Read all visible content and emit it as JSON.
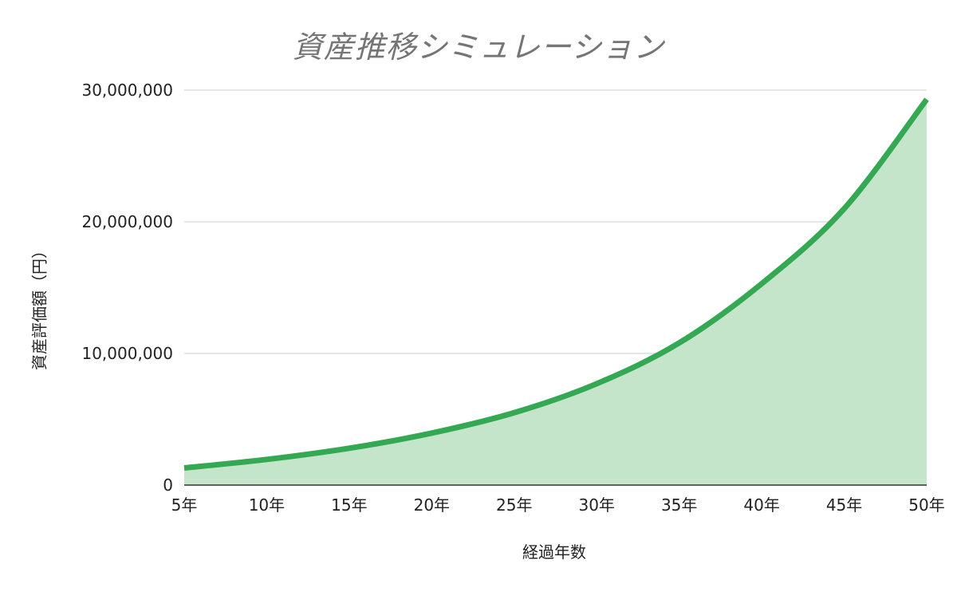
{
  "chart_data": {
    "type": "area",
    "title": "資産推移シミュレーション",
    "xlabel": "経過年数",
    "ylabel": "資産評価額（円）",
    "categories": [
      "5年",
      "10年",
      "15年",
      "20年",
      "25年",
      "30年",
      "35年",
      "40年",
      "45年",
      "50年"
    ],
    "x": [
      5,
      10,
      15,
      20,
      25,
      30,
      35,
      40,
      45,
      50
    ],
    "ylim": [
      0,
      30000000
    ],
    "y_ticks": [
      {
        "value": 0,
        "label": "0"
      },
      {
        "value": 10000000,
        "label": "10,000,000"
      },
      {
        "value": 20000000,
        "label": "20,000,000"
      },
      {
        "value": 30000000,
        "label": "30,000,000"
      }
    ],
    "grid": true,
    "series": [
      {
        "values": [
          1300000,
          1950000,
          2800000,
          3950000,
          5500000,
          7700000,
          10800000,
          15300000,
          21000000,
          29300000
        ],
        "line_color": "#34a853",
        "fill_color": "#c5e5cb"
      }
    ]
  }
}
